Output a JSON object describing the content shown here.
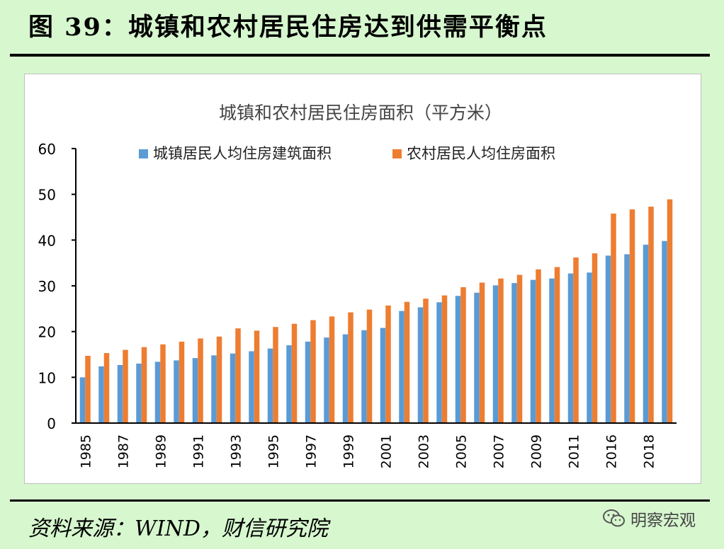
{
  "header": {
    "title": "图 39：城镇和农村居民住房达到供需平衡点"
  },
  "footer": {
    "source": "资料来源：WIND，财信研究院"
  },
  "watermark": {
    "icon": "wechat-icon",
    "text": "明察宏观"
  },
  "colors": {
    "urban": "#5b9bd5",
    "rural": "#ed7d31",
    "background": "#d7f7cf"
  },
  "chart_data": {
    "type": "bar",
    "title": "城镇和农村居民住房面积（平方米）",
    "xlabel": "",
    "ylabel": "",
    "ylim": [
      0,
      60
    ],
    "yticks": [
      0,
      10,
      20,
      30,
      40,
      50,
      60
    ],
    "legend_position": "top",
    "grid": false,
    "categories": [
      "1985",
      "1986",
      "1987",
      "1988",
      "1989",
      "1990",
      "1991",
      "1992",
      "1993",
      "1994",
      "1995",
      "1996",
      "1997",
      "1998",
      "1999",
      "2000",
      "2001",
      "2002",
      "2003",
      "2004",
      "2005",
      "2006",
      "2007",
      "2008",
      "2009",
      "2010",
      "2011",
      "2012",
      "2016",
      "2017",
      "2018",
      "2019"
    ],
    "tick_labels": [
      "1985",
      "",
      "1987",
      "",
      "1989",
      "",
      "1991",
      "",
      "1993",
      "",
      "1995",
      "",
      "1997",
      "",
      "1999",
      "",
      "2001",
      "",
      "2003",
      "",
      "2005",
      "",
      "2007",
      "",
      "2009",
      "",
      "2011",
      "",
      "2016",
      "",
      "2018",
      ""
    ],
    "series": [
      {
        "name": "城镇居民人均住房建筑面积",
        "color": "#5b9bd5",
        "values": [
          10.0,
          12.4,
          12.7,
          13.0,
          13.4,
          13.7,
          14.2,
          14.8,
          15.2,
          15.7,
          16.3,
          17.0,
          17.8,
          18.7,
          19.4,
          20.3,
          20.8,
          24.5,
          25.3,
          26.4,
          27.8,
          28.5,
          30.1,
          30.6,
          31.3,
          31.6,
          32.7,
          32.9,
          36.6,
          36.9,
          39.0,
          39.8
        ]
      },
      {
        "name": "农村居民人均住房面积",
        "color": "#ed7d31",
        "values": [
          14.7,
          15.3,
          16.0,
          16.6,
          17.2,
          17.8,
          18.5,
          18.9,
          20.7,
          20.2,
          21.0,
          21.7,
          22.5,
          23.3,
          24.2,
          24.8,
          25.7,
          26.5,
          27.2,
          27.9,
          29.7,
          30.7,
          31.6,
          32.4,
          33.6,
          34.1,
          36.2,
          37.1,
          45.8,
          46.7,
          47.3,
          48.9
        ]
      }
    ]
  }
}
